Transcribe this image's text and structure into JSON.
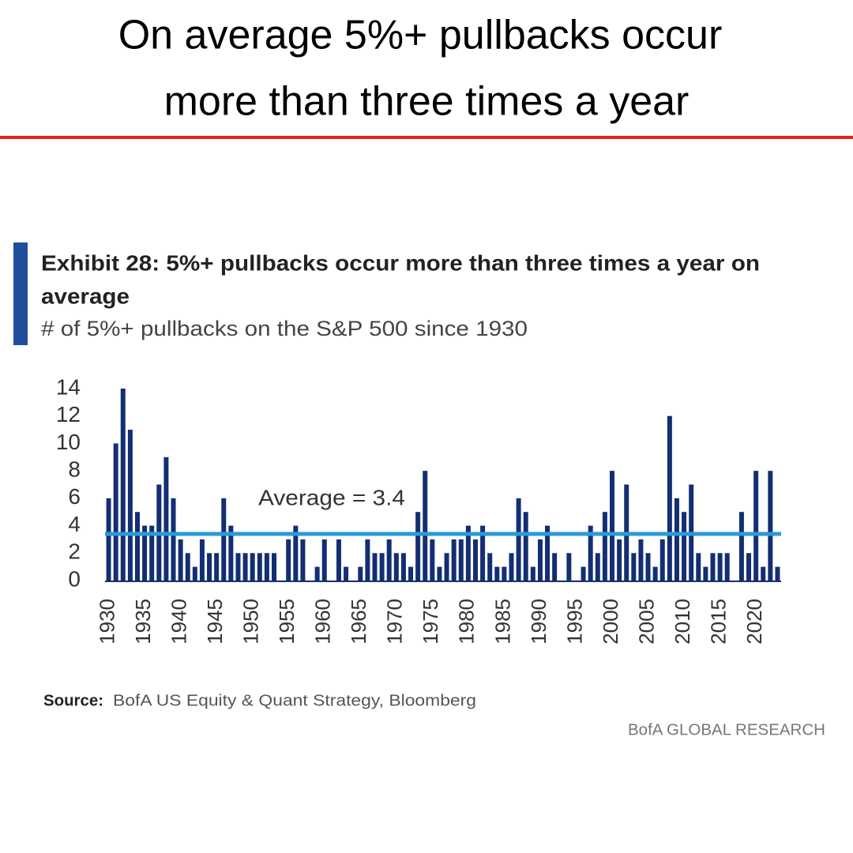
{
  "header": {
    "title_lines": [
      "On average 5%+ pullbacks occur",
      "more than three times a year"
    ]
  },
  "chart_data": {
    "type": "bar",
    "title_lines": [
      "Exhibit 28: 5%+ pullbacks occur more than three times a year on",
      "average"
    ],
    "subtitle": "# of 5%+ pullbacks on the S&P 500 since 1930",
    "categories": [
      "1930",
      null,
      null,
      null,
      null,
      "1935",
      null,
      null,
      null,
      null,
      "1940",
      null,
      null,
      null,
      null,
      "1945",
      null,
      null,
      null,
      null,
      "1950",
      null,
      null,
      null,
      null,
      "1955",
      null,
      null,
      null,
      null,
      "1960",
      null,
      null,
      null,
      null,
      "1965",
      null,
      null,
      null,
      null,
      "1970",
      null,
      null,
      null,
      null,
      "1975",
      null,
      null,
      null,
      null,
      "1980",
      null,
      null,
      null,
      null,
      "1985",
      null,
      null,
      null,
      null,
      "1990",
      null,
      null,
      null,
      null,
      "1995",
      null,
      null,
      null,
      null,
      "2000",
      null,
      null,
      null,
      null,
      "2005",
      null,
      null,
      null,
      null,
      "2010",
      null,
      null,
      null,
      null,
      "2015",
      null,
      null,
      null,
      null,
      "2020",
      null,
      null,
      null
    ],
    "values": [
      6,
      10,
      14,
      11,
      5,
      4,
      4,
      7,
      9,
      6,
      3,
      2,
      1,
      3,
      2,
      2,
      6,
      4,
      2,
      2,
      2,
      2,
      2,
      2,
      0,
      3,
      4,
      3,
      0,
      1,
      3,
      0,
      3,
      1,
      0,
      1,
      3,
      2,
      2,
      3,
      2,
      2,
      1,
      5,
      8,
      3,
      1,
      2,
      3,
      3,
      4,
      3,
      4,
      2,
      1,
      1,
      2,
      6,
      5,
      1,
      3,
      4,
      2,
      0,
      2,
      0,
      1,
      4,
      2,
      5,
      8,
      3,
      7,
      2,
      3,
      2,
      1,
      3,
      12,
      6,
      5,
      7,
      2,
      1,
      2,
      2,
      2,
      0,
      5,
      2,
      8,
      1,
      8,
      1
    ],
    "color": "#132e72",
    "average": 3.4,
    "average_label": "Average = 3.4",
    "average_color": "#2a9ad6",
    "ylim": [
      0,
      14
    ],
    "yticks": [
      0,
      2,
      4,
      6,
      8,
      10,
      12,
      14
    ],
    "grid": false,
    "source_label": "Source:",
    "source": "BofA US Equity & Quant Strategy, Bloomberg",
    "branding": "BofA GLOBAL RESEARCH"
  }
}
